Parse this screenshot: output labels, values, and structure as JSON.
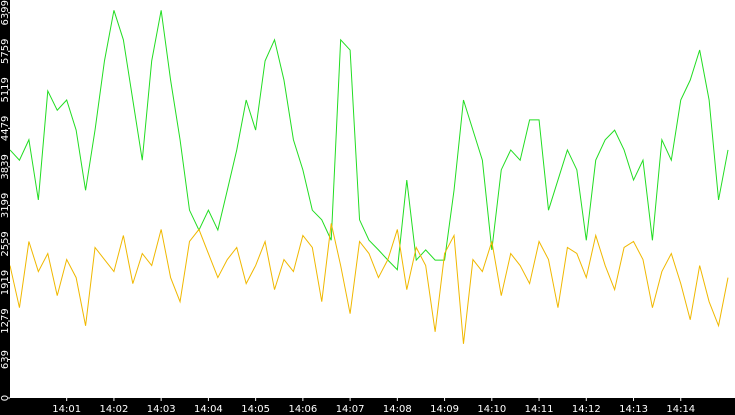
{
  "chart_data": {
    "type": "line",
    "categories": [
      null,
      null,
      null,
      null,
      null,
      null,
      "14:01",
      null,
      null,
      null,
      null,
      "14:02",
      null,
      null,
      null,
      null,
      "14:03",
      null,
      null,
      null,
      null,
      "14:04",
      null,
      null,
      null,
      null,
      "14:05",
      null,
      null,
      null,
      null,
      "14:06",
      null,
      null,
      null,
      null,
      "14:07",
      null,
      null,
      null,
      null,
      "14:08",
      null,
      null,
      null,
      null,
      "14:09",
      null,
      null,
      null,
      null,
      "14:10",
      null,
      null,
      null,
      null,
      "14:11",
      null,
      null,
      null,
      null,
      "14:12",
      null,
      null,
      null,
      null,
      "14:13",
      null,
      null,
      null,
      null,
      "14:14",
      null,
      null,
      null,
      null,
      null
    ],
    "series": [
      {
        "color": "#22dd22",
        "values": [
          4120,
          3950,
          4290,
          3290,
          5100,
          4780,
          4950,
          4450,
          3450,
          4450,
          5600,
          6440,
          5950,
          4950,
          3950,
          5600,
          6440,
          5280,
          4290,
          3120,
          2790,
          3120,
          2790,
          3450,
          4120,
          4950,
          4450,
          5600,
          5950,
          5280,
          4290,
          3790,
          3120,
          2960,
          2620,
          5950,
          5780,
          2960,
          2620,
          2460,
          2290,
          2130,
          3620,
          2290,
          2460,
          2290,
          2290,
          3450,
          4950,
          4450,
          3950,
          2460,
          3790,
          4120,
          3950,
          4620,
          4620,
          3120,
          3620,
          4120,
          3790,
          2620,
          3950,
          4290,
          4450,
          4120,
          3620,
          3950,
          2620,
          4290,
          3950,
          4950,
          5280,
          5780,
          4950,
          3290,
          4120
        ]
      },
      {
        "color": "#f0b800",
        "values": [
          2200,
          1500,
          2600,
          2100,
          2400,
          1700,
          2300,
          2000,
          1200,
          2500,
          2300,
          2100,
          2700,
          1900,
          2400,
          2200,
          2800,
          2000,
          1600,
          2600,
          2800,
          2400,
          2000,
          2300,
          2500,
          1900,
          2200,
          2600,
          1800,
          2300,
          2100,
          2700,
          2500,
          1600,
          2900,
          2200,
          1400,
          2600,
          2400,
          2000,
          2300,
          2800,
          1800,
          2500,
          2200,
          1100,
          2400,
          2700,
          900,
          2300,
          2100,
          2600,
          1700,
          2400,
          2200,
          1900,
          2600,
          2300,
          1500,
          2500,
          2400,
          2000,
          2700,
          2200,
          1800,
          2500,
          2600,
          2300,
          1500,
          2100,
          2400,
          1900,
          1300,
          2200,
          1600,
          1200,
          2000
        ]
      }
    ],
    "ylim": [
      0,
      6611
    ],
    "yticks": [
      0,
      639,
      1279,
      1919,
      2559,
      3199,
      3839,
      4479,
      5119,
      5759,
      6399
    ]
  }
}
